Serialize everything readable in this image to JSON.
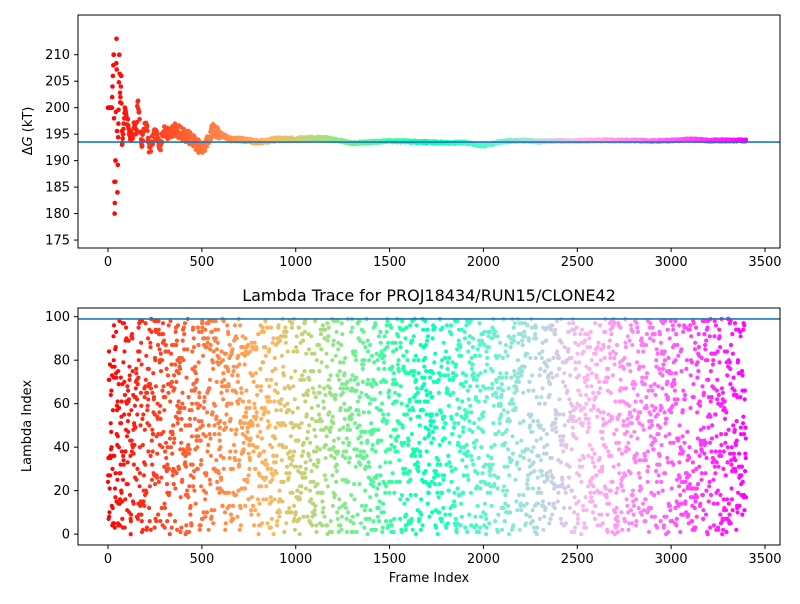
{
  "chart_data": [
    {
      "type": "scatter",
      "title": "",
      "xlabel": "",
      "ylabel": "ΔG (kT)",
      "ylabel_parts": {
        "greek": "Δ",
        "italic": "G",
        "unit": " (kT)"
      },
      "xlim": [
        -160,
        3580
      ],
      "ylim": [
        173.5,
        217.5
      ],
      "xticks": [
        0,
        500,
        1000,
        1500,
        2000,
        2500,
        3000,
        3500
      ],
      "xtick_labels": [
        "0",
        "500",
        "1000",
        "1500",
        "2000",
        "2500",
        "3000",
        "3500"
      ],
      "yticks": [
        175,
        180,
        185,
        190,
        195,
        200,
        205,
        210
      ],
      "ytick_labels": [
        "175",
        "180",
        "185",
        "190",
        "195",
        "200",
        "205",
        "210"
      ],
      "hline": 193.5,
      "colormap": "rainbow (red at frame 0 to violet at last frame)",
      "n_frames": 3400,
      "series": [
        {
          "x": [
            20,
            30,
            35,
            40,
            45,
            50,
            55,
            60,
            65,
            70,
            75,
            80,
            90,
            100,
            110,
            120,
            130,
            140,
            150,
            160,
            170,
            180,
            200,
            220,
            250,
            280,
            300,
            320,
            350,
            400,
            450,
            500,
            520,
            560,
            600,
            650,
            700,
            800,
            900,
            1000,
            1100,
            1200,
            1300,
            1400,
            1500,
            1600,
            1700,
            1800,
            1900,
            2000,
            2100,
            2200,
            2300,
            2400,
            2500,
            2600,
            2700,
            2800,
            2900,
            3000,
            3100,
            3200,
            3300,
            3400
          ],
          "y": [
            200,
            210,
            180,
            190,
            213,
            184,
            197,
            210,
            201,
            206,
            193,
            195,
            200,
            198,
            196,
            195,
            194,
            197,
            195,
            202,
            196,
            193,
            198,
            192,
            195,
            193,
            196,
            195,
            196,
            195,
            194,
            192,
            193,
            196,
            195,
            194,
            194,
            193.5,
            194,
            194,
            194.2,
            194,
            193.3,
            193.5,
            193.7,
            193.6,
            193.5,
            193.4,
            193.4,
            192.8,
            193.6,
            193.8,
            193.6,
            193.7,
            193.7,
            193.8,
            193.8,
            193.8,
            193.7,
            193.8,
            194,
            193.8,
            193.8,
            193.8
          ]
        }
      ]
    },
    {
      "type": "scatter",
      "title": "Lambda Trace for PROJ18434/RUN15/CLONE42",
      "xlabel": "Frame Index",
      "ylabel": "Lambda Index",
      "xlim": [
        -160,
        3580
      ],
      "ylim": [
        -5,
        104
      ],
      "xticks": [
        0,
        500,
        1000,
        1500,
        2000,
        2500,
        3000,
        3500
      ],
      "xtick_labels": [
        "0",
        "500",
        "1000",
        "1500",
        "2000",
        "2500",
        "3000",
        "3500"
      ],
      "yticks": [
        0,
        20,
        40,
        60,
        80,
        100
      ],
      "ytick_labels": [
        "0",
        "20",
        "40",
        "60",
        "80",
        "100"
      ],
      "hline": 99,
      "colormap": "rainbow (red at frame 0 to violet at last frame)",
      "n_frames": 3400,
      "lambda_range": [
        0,
        99
      ],
      "series": [
        {
          "x": [
            0,
            10,
            20,
            30,
            40,
            50,
            60,
            80,
            100,
            150,
            200,
            300,
            400,
            500,
            600,
            700,
            800,
            900,
            1000,
            1100,
            1200,
            1300,
            1400,
            1500,
            1600,
            1700,
            1800,
            1900,
            2000,
            2100,
            2200,
            2300,
            2400,
            2500,
            2600,
            2700,
            2800,
            2900,
            3000,
            3100,
            3200,
            3300,
            3380
          ],
          "y": [
            1,
            30,
            91,
            35,
            8,
            98,
            60,
            75,
            40,
            90,
            10,
            55,
            99,
            20,
            70,
            5,
            45,
            85,
            30,
            62,
            12,
            80,
            48,
            95,
            25,
            66,
            3,
            58,
            88,
            18,
            72,
            38,
            92,
            28,
            64,
            8,
            82,
            50,
            15,
            97,
            42,
            78,
            85
          ]
        }
      ]
    }
  ]
}
